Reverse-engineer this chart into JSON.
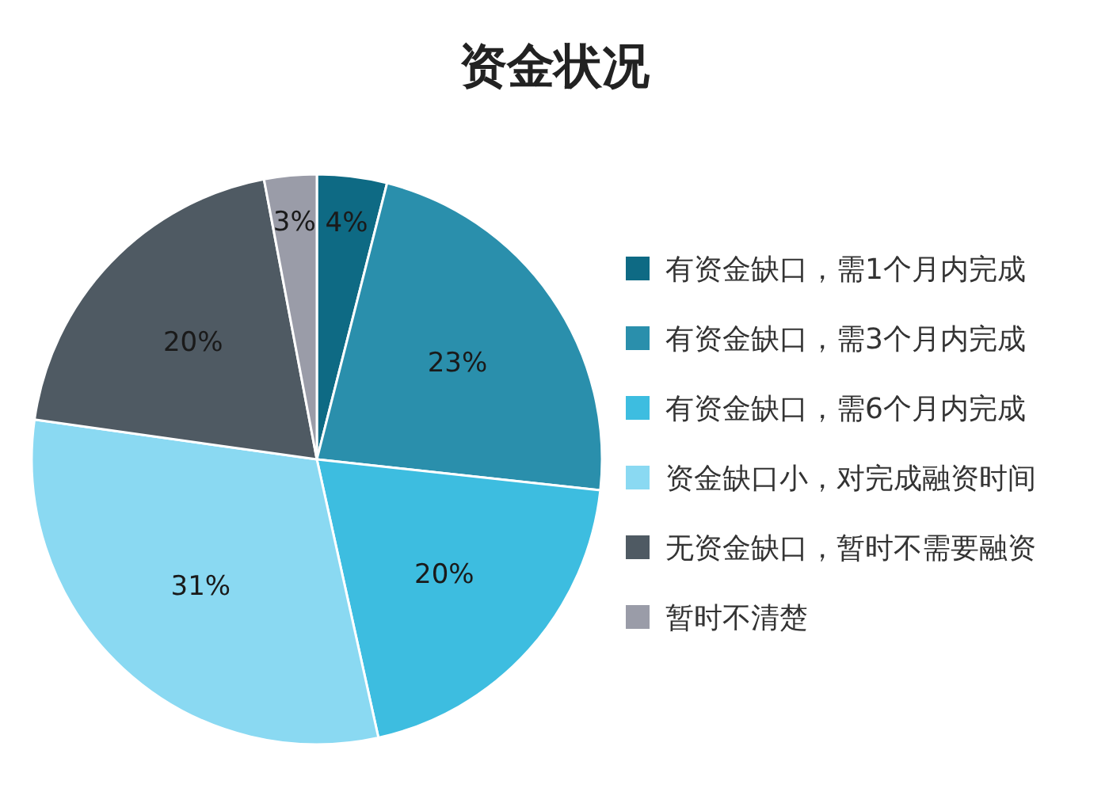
{
  "chart_data": {
    "type": "pie",
    "title": "资金状况",
    "categories": [
      "有资金缺口，需1个月内完成",
      "有资金缺口，需3个月内完成",
      "有资金缺口，需6个月内完成",
      "资金缺口小，对完成融资时间",
      "无资金缺口，暂时不需要融资",
      "暂时不清楚"
    ],
    "values": [
      4,
      23,
      20,
      31,
      20,
      3
    ],
    "value_labels": [
      "4%",
      "23%",
      "20%",
      "31%",
      "20%",
      "3%"
    ],
    "colors": [
      "#0e6a84",
      "#2a8fac",
      "#3dbde0",
      "#8ad9f2",
      "#4f5a63",
      "#9a9ca8"
    ],
    "legend": "right"
  }
}
